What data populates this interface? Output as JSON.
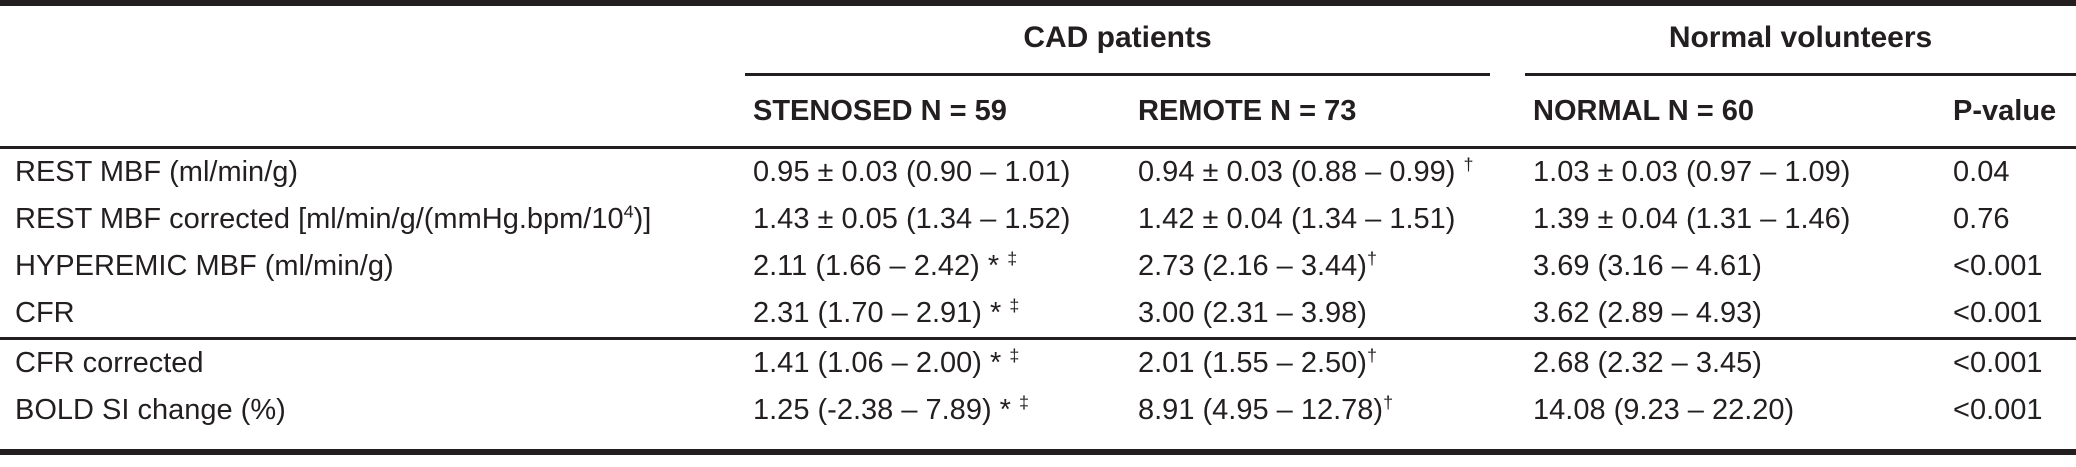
{
  "colors": {
    "text": "#231f20",
    "rule": "#231f20",
    "background": "#ffffff"
  },
  "table": {
    "group_headers": [
      {
        "label": "CAD patients"
      },
      {
        "label": "Normal volunteers"
      }
    ],
    "column_headers": {
      "stenosed": "STENOSED N = 59",
      "remote": "REMOTE N = 73",
      "normal": "NORMAL N = 60",
      "pvalue": "P-value"
    },
    "sections": [
      {
        "rows": [
          {
            "label": "REST MBF (ml/min/g)",
            "cells": [
              "0.95 ± 0.03 (0.90 – 1.01)",
              "0.94 ± 0.03 (0.88 – 0.99) ^{†}",
              "1.03 ± 0.03 (0.97 – 1.09)",
              "0.04"
            ]
          },
          {
            "label": "REST MBF corrected [ml/min/g/(mmHg.bpm/10^{4})]",
            "cells": [
              "1.43 ± 0.05 (1.34 – 1.52)",
              "1.42 ± 0.04 (1.34 – 1.51)",
              "1.39 ± 0.04 (1.31 – 1.46)",
              "0.76"
            ]
          },
          {
            "label": "HYPEREMIC MBF (ml/min/g)",
            "cells": [
              "2.11 (1.66 – 2.42) * ^{‡}",
              "2.73 (2.16 – 3.44)^{†}",
              "3.69 (3.16 – 4.61)",
              "<0.001"
            ]
          },
          {
            "label": "CFR",
            "cells": [
              "2.31 (1.70 – 2.91) * ^{‡}",
              "3.00 (2.31 – 3.98)",
              "3.62 (2.89 – 4.93)",
              "<0.001"
            ]
          }
        ]
      },
      {
        "rows": [
          {
            "label": "CFR corrected",
            "cells": [
              "1.41 (1.06 – 2.00) * ^{‡}",
              "2.01 (1.55 – 2.50)^{†}",
              "2.68 (2.32 – 3.45)",
              "<0.001"
            ]
          },
          {
            "label": "BOLD SI change (%)",
            "cells": [
              "1.25 (-2.38 – 7.89) * ^{‡}",
              "8.91 (4.95 – 12.78)^{†}",
              "14.08 (9.23 – 22.20)",
              "<0.001"
            ]
          }
        ]
      }
    ]
  }
}
